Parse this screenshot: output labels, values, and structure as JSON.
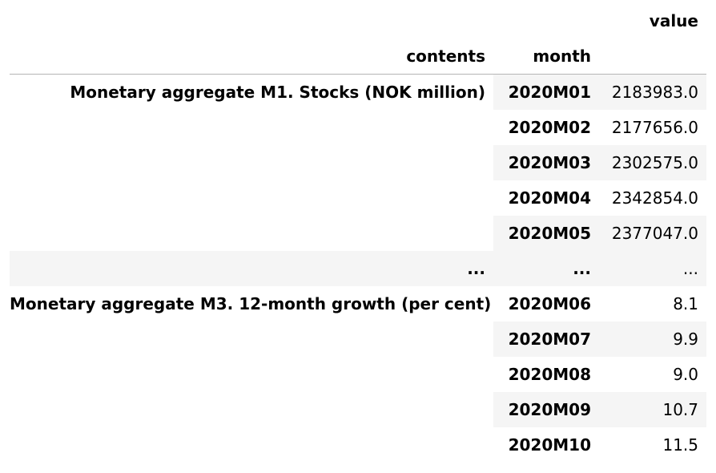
{
  "table": {
    "header": {
      "value_label": "value",
      "index_names": [
        "contents",
        "month"
      ]
    },
    "groups": [
      {
        "contents": "Monetary aggregate M1. Stocks (NOK million)",
        "rows": [
          {
            "month": "2020M01",
            "value": "2183983.0"
          },
          {
            "month": "2020M02",
            "value": "2177656.0"
          },
          {
            "month": "2020M03",
            "value": "2302575.0"
          },
          {
            "month": "2020M04",
            "value": "2342854.0"
          },
          {
            "month": "2020M05",
            "value": "2377047.0"
          }
        ]
      },
      {
        "contents": "Monetary aggregate M3. 12-month growth (per cent)",
        "rows": [
          {
            "month": "2020M06",
            "value": "8.1"
          },
          {
            "month": "2020M07",
            "value": "9.9"
          },
          {
            "month": "2020M08",
            "value": "9.0"
          },
          {
            "month": "2020M09",
            "value": "10.7"
          },
          {
            "month": "2020M10",
            "value": "11.5"
          }
        ]
      }
    ],
    "ellipsis": {
      "contents": "...",
      "month": "...",
      "value": "..."
    }
  }
}
